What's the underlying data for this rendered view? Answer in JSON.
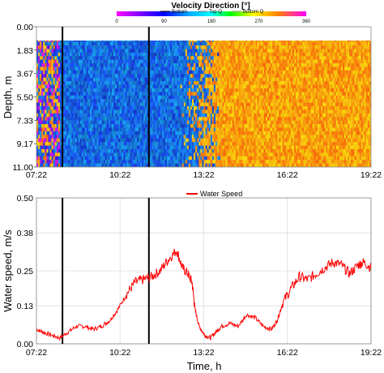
{
  "chart_data": [
    {
      "type": "heatmap",
      "title": "Velocity Direction [°]",
      "colorbar": {
        "ticks": [
          "0",
          "90",
          "180",
          "270",
          "360"
        ],
        "range": [
          0,
          360
        ]
      },
      "legend": [
        "Bottom",
        "Top Q",
        "Bottom Q"
      ],
      "ylabel": "Depth, m",
      "yticks": [
        "0.00",
        "1.83",
        "3.67",
        "5.50",
        "7.33",
        "9.17",
        "11.00"
      ],
      "ylim": [
        0,
        11
      ],
      "xticks": [
        "07:22",
        "10:22",
        "13:22",
        "16:22",
        "19:22"
      ],
      "xlim_hours": [
        7.367,
        19.367
      ],
      "vertical_markers_hours": [
        8.3,
        11.4
      ],
      "data_top_depth_m": 0.9,
      "direction_regimes": [
        {
          "from_hour": 7.367,
          "to_hour": 8.2,
          "direction_deg": "mixed",
          "note": "noisy mixed"
        },
        {
          "from_hour": 8.2,
          "to_hour": 12.5,
          "direction_deg": 200
        },
        {
          "from_hour": 12.5,
          "to_hour": 14.0,
          "direction_deg": "transition"
        },
        {
          "from_hour": 14.0,
          "to_hour": 19.367,
          "direction_deg": 35
        }
      ]
    },
    {
      "type": "line",
      "legend": [
        "Water Speed"
      ],
      "series": [
        {
          "name": "Water Speed",
          "color": "#ff0000",
          "x_hours": [
            7.37,
            7.6,
            7.9,
            8.2,
            8.5,
            8.8,
            9.1,
            9.4,
            9.7,
            10.0,
            10.3,
            10.6,
            10.9,
            11.2,
            11.5,
            11.8,
            12.1,
            12.4,
            12.6,
            12.8,
            12.95,
            13.05,
            13.2,
            13.4,
            13.6,
            13.8,
            14.0,
            14.3,
            14.6,
            14.9,
            15.2,
            15.5,
            15.8,
            16.0,
            16.2,
            16.5,
            16.8,
            17.1,
            17.4,
            17.7,
            18.0,
            18.3,
            18.6,
            18.9,
            19.1,
            19.37
          ],
          "values": [
            0.05,
            0.04,
            0.03,
            0.02,
            0.04,
            0.06,
            0.06,
            0.05,
            0.06,
            0.08,
            0.12,
            0.17,
            0.21,
            0.22,
            0.23,
            0.25,
            0.29,
            0.32,
            0.26,
            0.24,
            0.21,
            0.12,
            0.06,
            0.03,
            0.02,
            0.04,
            0.06,
            0.07,
            0.06,
            0.1,
            0.09,
            0.06,
            0.05,
            0.08,
            0.14,
            0.19,
            0.23,
            0.22,
            0.24,
            0.26,
            0.28,
            0.27,
            0.24,
            0.27,
            0.28,
            0.26
          ]
        }
      ],
      "ylabel": "Water speed, m/s",
      "xlabel": "Time, h",
      "yticks": [
        "0.00",
        "0.13",
        "0.25",
        "0.38",
        "0.50"
      ],
      "ylim": [
        0,
        0.5
      ],
      "xticks": [
        "07:22",
        "10:22",
        "13:22",
        "16:22",
        "19:22"
      ],
      "xlim_hours": [
        7.367,
        19.367
      ],
      "vertical_markers_hours": [
        8.3,
        11.4
      ]
    }
  ]
}
